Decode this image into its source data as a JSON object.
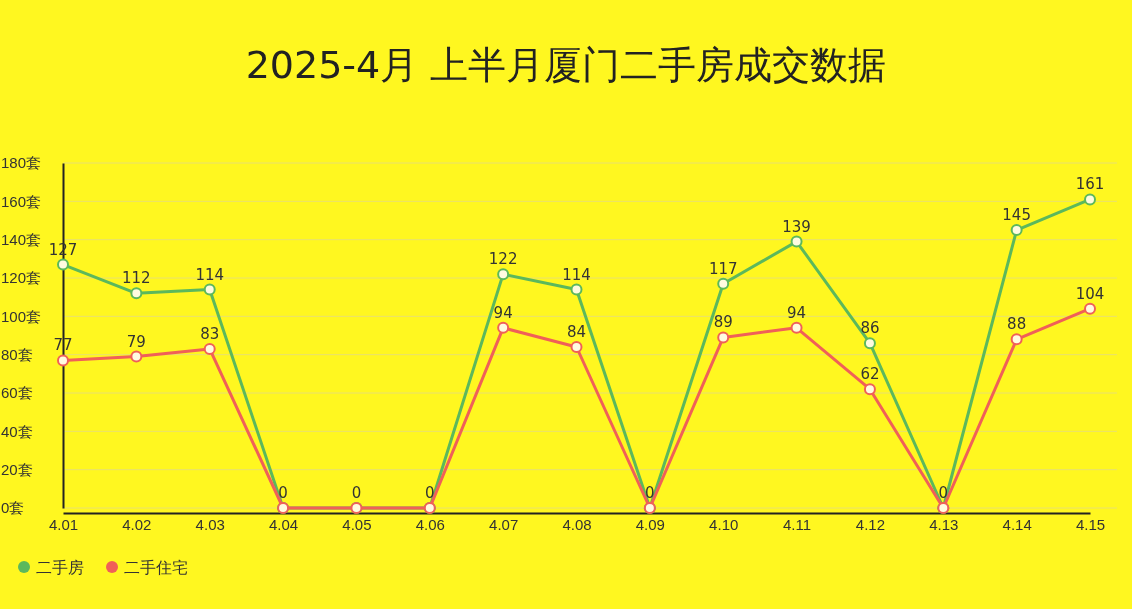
{
  "chart_data": {
    "type": "line",
    "title": "2025-4月 上半月厦门二手房成交数据",
    "categories": [
      "4.01",
      "4.02",
      "4.03",
      "4.04",
      "4.05",
      "4.06",
      "4.07",
      "4.08",
      "4.09",
      "4.10",
      "4.11",
      "4.12",
      "4.13",
      "4.14",
      "4.15"
    ],
    "series": [
      {
        "name": "二手房",
        "color": "#5cb85c",
        "values": [
          127,
          112,
          114,
          0,
          0,
          0,
          122,
          114,
          0,
          117,
          139,
          86,
          0,
          145,
          161
        ],
        "value_labels": [
          "127",
          "112",
          "114",
          "0",
          "0",
          "0",
          "122",
          "114",
          "0",
          "117",
          "139",
          "86",
          "0",
          "145",
          "161"
        ]
      },
      {
        "name": "二手住宅",
        "color": "#f06058",
        "values": [
          77,
          79,
          83,
          0,
          0,
          0,
          94,
          84,
          0,
          89,
          94,
          62,
          0,
          88,
          104
        ],
        "value_labels": [
          "77",
          "79",
          "83",
          null,
          null,
          null,
          "94",
          "84",
          null,
          "89",
          "94",
          "62",
          null,
          "88",
          "104"
        ]
      }
    ],
    "ylim": [
      0,
      180
    ],
    "yticks": [
      {
        "value": 0,
        "label": "0套"
      },
      {
        "value": 20,
        "label": "20套"
      },
      {
        "value": 40,
        "label": "40套"
      },
      {
        "value": 60,
        "label": "60套"
      },
      {
        "value": 80,
        "label": "80套"
      },
      {
        "value": 100,
        "label": "100套"
      },
      {
        "value": 120,
        "label": "120套"
      },
      {
        "value": 140,
        "label": "140套"
      },
      {
        "value": 160,
        "label": "160套"
      },
      {
        "value": 180,
        "label": "180套"
      }
    ],
    "grid": "y",
    "legend": "bottom left",
    "marker": "circle",
    "line_style": "solid"
  }
}
